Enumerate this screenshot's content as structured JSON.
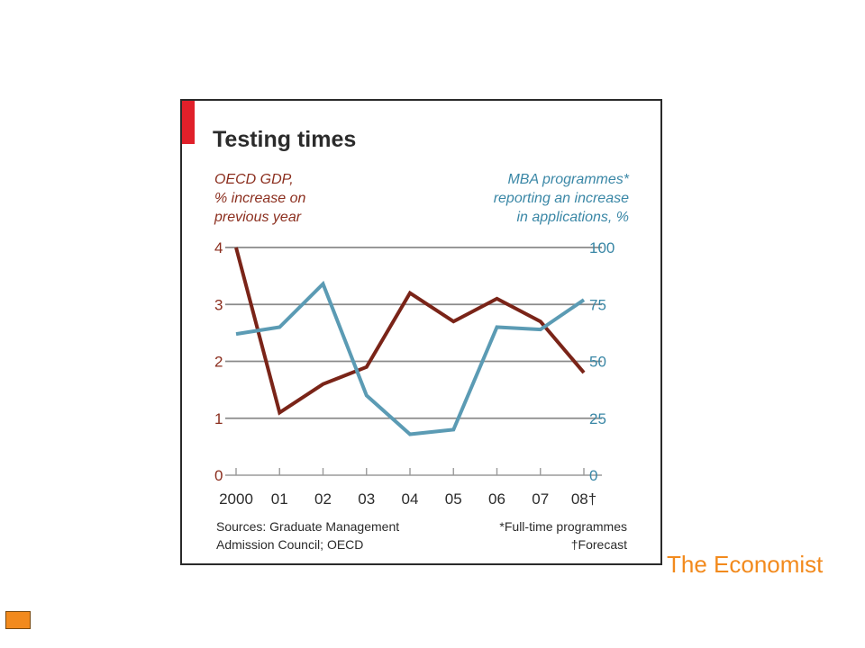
{
  "chart_data": {
    "type": "line",
    "title": "Testing times",
    "x": [
      "2000",
      "01",
      "02",
      "03",
      "04",
      "05",
      "06",
      "07",
      "08†"
    ],
    "left_axis": {
      "label_lines": [
        "OECD GDP,",
        "% increase on",
        "previous year"
      ],
      "ylim": [
        0,
        4
      ],
      "ticks": [
        "0",
        "1",
        "2",
        "3",
        "4"
      ],
      "color": "#7a2418"
    },
    "right_axis": {
      "label_lines": [
        "MBA programmes*",
        "reporting an increase",
        "in applications, %"
      ],
      "ylim": [
        0,
        100
      ],
      "ticks": [
        "0",
        "25",
        "50",
        "75",
        "100"
      ],
      "color": "#5b9bb4"
    },
    "series": [
      {
        "axis": "left",
        "color": "#7a2418",
        "values": [
          4.0,
          1.1,
          1.6,
          1.9,
          3.2,
          2.7,
          3.1,
          2.7,
          1.8
        ]
      },
      {
        "axis": "right",
        "color": "#5b9bb4",
        "values": [
          62,
          65,
          84,
          35,
          18,
          20,
          65,
          64,
          77
        ]
      }
    ],
    "grid": true,
    "sources_lines": [
      "Sources: Graduate Management",
      "Admission Council; OECD"
    ],
    "footnotes": [
      "*Full-time programmes",
      "†Forecast"
    ],
    "accent_bar_color": "#e0202a"
  },
  "credit": "The Economist",
  "colors": {
    "credit": "#f28a1d",
    "marker": "#f28a1d"
  }
}
